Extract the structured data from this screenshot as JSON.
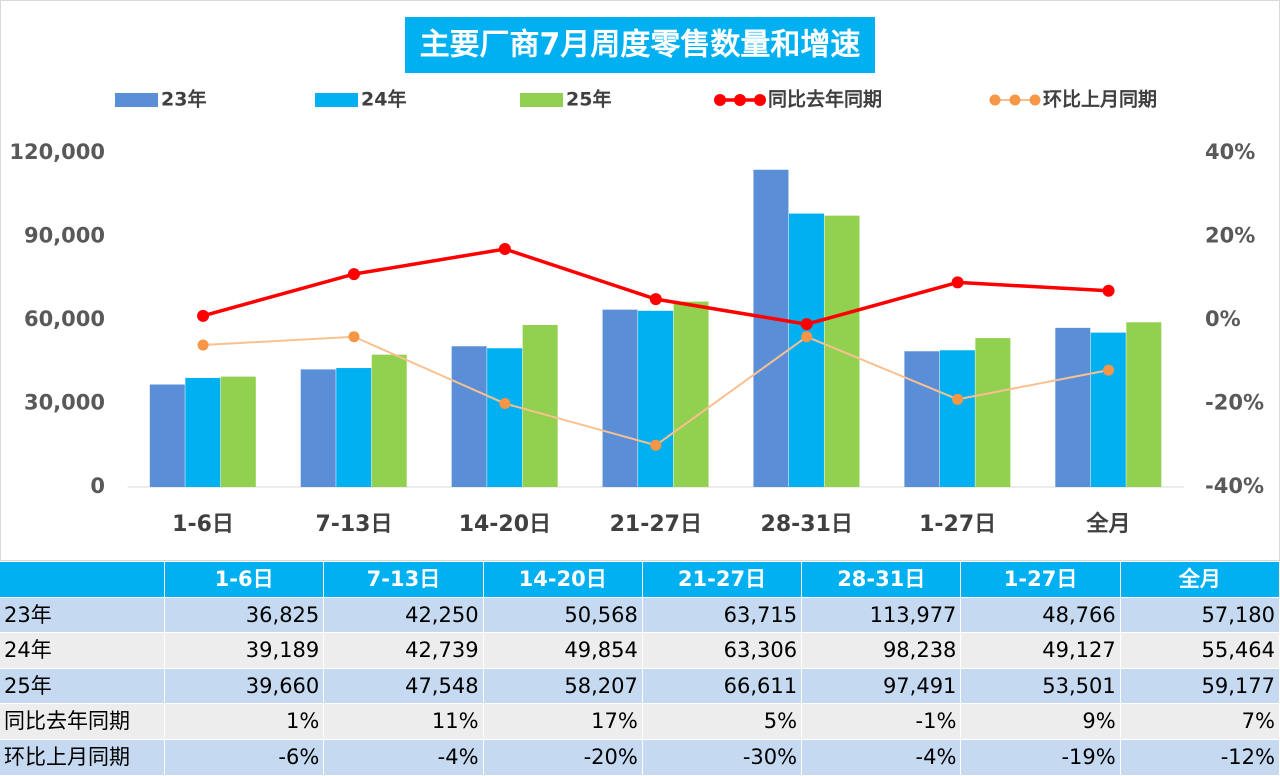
{
  "chart_data": {
    "type": "bar",
    "title": "主要厂商7月周度零售数量和增速",
    "legend": "top",
    "categories": [
      "1-6日",
      "7-13日",
      "14-20日",
      "21-27日",
      "28-31日",
      "1-27日",
      "全月"
    ],
    "series": [
      {
        "name": "23年",
        "type": "bar",
        "color": "#5a8fd8",
        "values": [
          36825,
          42250,
          50568,
          63715,
          113977,
          48766,
          57180
        ],
        "value_labels": [
          "36,825",
          "42,250",
          "50,568",
          "63,715",
          "113,977",
          "48,766",
          "57,180"
        ]
      },
      {
        "name": "24年",
        "type": "bar",
        "color": "#00b0f0",
        "values": [
          39189,
          42739,
          49854,
          63306,
          98238,
          49127,
          55464
        ],
        "value_labels": [
          "39,189",
          "42,739",
          "49,854",
          "63,306",
          "98,238",
          "49,127",
          "55,464"
        ]
      },
      {
        "name": "25年",
        "type": "bar",
        "color": "#92d050",
        "values": [
          39660,
          47548,
          58207,
          66611,
          97491,
          53501,
          59177
        ],
        "value_labels": [
          "39,660",
          "47,548",
          "58,207",
          "66,611",
          "97,491",
          "53,501",
          "59,177"
        ]
      },
      {
        "name": "同比去年同期",
        "type": "line",
        "axis": "y2",
        "color": "#ff0000",
        "marker_color": "#ff0000",
        "values": [
          1,
          11,
          17,
          5,
          -1,
          9,
          7
        ],
        "value_labels": [
          "1%",
          "11%",
          "17%",
          "5%",
          "-1%",
          "9%",
          "7%"
        ]
      },
      {
        "name": "环比上月同期",
        "type": "line",
        "axis": "y2",
        "color": "#fac090",
        "marker_color": "#f79646",
        "values": [
          -6,
          -4,
          -20,
          -30,
          -4,
          -19,
          -12
        ],
        "value_labels": [
          "-6%",
          "-4%",
          "-20%",
          "-30%",
          "-4%",
          "-19%",
          "-12%"
        ]
      }
    ],
    "ylim": [
      0,
      120000
    ],
    "yticks": [
      0,
      {
        "value": 30000,
        "label": "30,000"
      },
      {
        "value": 60000,
        "label": "60,000"
      },
      {
        "value": 90000,
        "label": "90,000"
      },
      {
        "value": 120000,
        "label": "120,000"
      }
    ],
    "y2lim": [
      -40,
      40
    ],
    "y2ticks": [
      {
        "value": -40,
        "label": "-40%"
      },
      {
        "value": -20,
        "label": "-20%"
      },
      {
        "value": 0,
        "label": "0%"
      },
      {
        "value": 20,
        "label": "20%"
      },
      {
        "value": 40,
        "label": "40%"
      }
    ]
  }
}
